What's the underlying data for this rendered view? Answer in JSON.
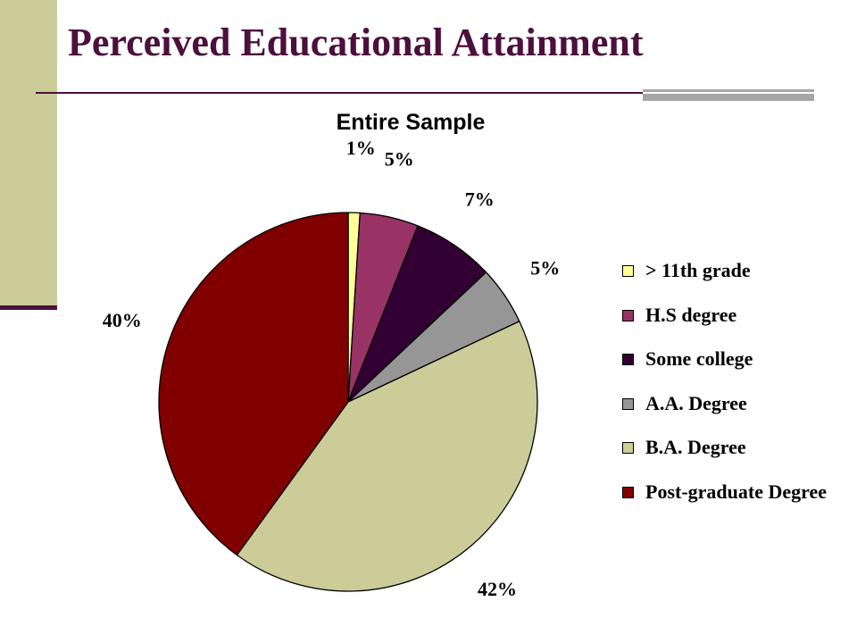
{
  "slide": {
    "title": "Perceived Educational Attainment"
  },
  "colors": {
    "title": "#4d0f3d",
    "sidebar": "#cccc99",
    "accent_bar": "#a6a6a6"
  },
  "chart_data": {
    "type": "pie",
    "title": "Entire Sample",
    "legend_position": "right",
    "start_angle_deg": 0,
    "direction": "clockwise",
    "slices": [
      {
        "name": "> 11th grade",
        "value": 1,
        "label": "1%",
        "color": "#ffff99"
      },
      {
        "name": "H.S degree",
        "value": 5,
        "label": "5%",
        "color": "#993366"
      },
      {
        "name": "Some college",
        "value": 7,
        "label": "7%",
        "color": "#330033"
      },
      {
        "name": "A.A. Degree",
        "value": 5,
        "label": "5%",
        "color": "#969696"
      },
      {
        "name": "B.A. Degree",
        "value": 42,
        "label": "42%",
        "color": "#cccc99"
      },
      {
        "name": "Post-graduate Degree",
        "value": 40,
        "label": "40%",
        "color": "#800000"
      }
    ]
  }
}
